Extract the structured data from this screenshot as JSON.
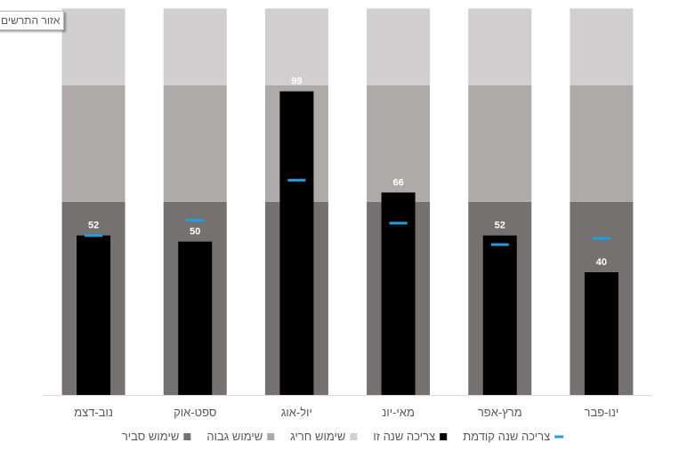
{
  "area_label": "אזור התרשים",
  "colors": {
    "band_extreme": "#d0cece",
    "band_high": "#aeaaaa",
    "band_reasonable": "#767171",
    "actual_bar": "#000000",
    "prev_marker": "#1ba1e2",
    "axis": "#d9d9d9",
    "text": "#595959",
    "value_label": "#ffffff"
  },
  "chart_data": {
    "type": "bar",
    "title": "",
    "xlabel": "",
    "ylabel": "",
    "ylim": [
      0,
      125
    ],
    "grid": false,
    "legend_position": "bottom",
    "direction": "rtl",
    "categories": [
      "נוב-דצמ",
      "ספט-אוק",
      "יול-אוג",
      "מאי-יונ",
      "מרץ-אפר",
      "ינו-פבר"
    ],
    "bands": [
      {
        "name": "שימוש סביר",
        "values": [
          63,
          63,
          63,
          63,
          63,
          63
        ]
      },
      {
        "name": "שימוש גבוה",
        "values": [
          38,
          38,
          38,
          38,
          38,
          38
        ]
      },
      {
        "name": "שימוש חריג",
        "values": [
          25,
          25,
          25,
          25,
          25,
          25
        ]
      }
    ],
    "series": [
      {
        "name": "צריכה שנה זו",
        "values": [
          52,
          50,
          99,
          66,
          52,
          40
        ]
      },
      {
        "name": "צריכה שנה קודמת",
        "values": [
          52,
          57,
          70,
          56,
          49,
          51
        ]
      }
    ],
    "data_labels": [
      "52",
      "50",
      "99",
      "66",
      "52",
      "40"
    ],
    "legend": [
      {
        "label": "צריכה שנה קודמת",
        "key": "prev_marker",
        "shape": "line"
      },
      {
        "label": "צריכה שנה זו",
        "key": "actual_bar",
        "shape": "square"
      },
      {
        "label": "שימוש חריג",
        "key": "band_extreme",
        "shape": "square"
      },
      {
        "label": "שימוש גבוה",
        "key": "band_high",
        "shape": "square"
      },
      {
        "label": "שימוש סביר",
        "key": "band_reasonable",
        "shape": "square"
      }
    ]
  }
}
